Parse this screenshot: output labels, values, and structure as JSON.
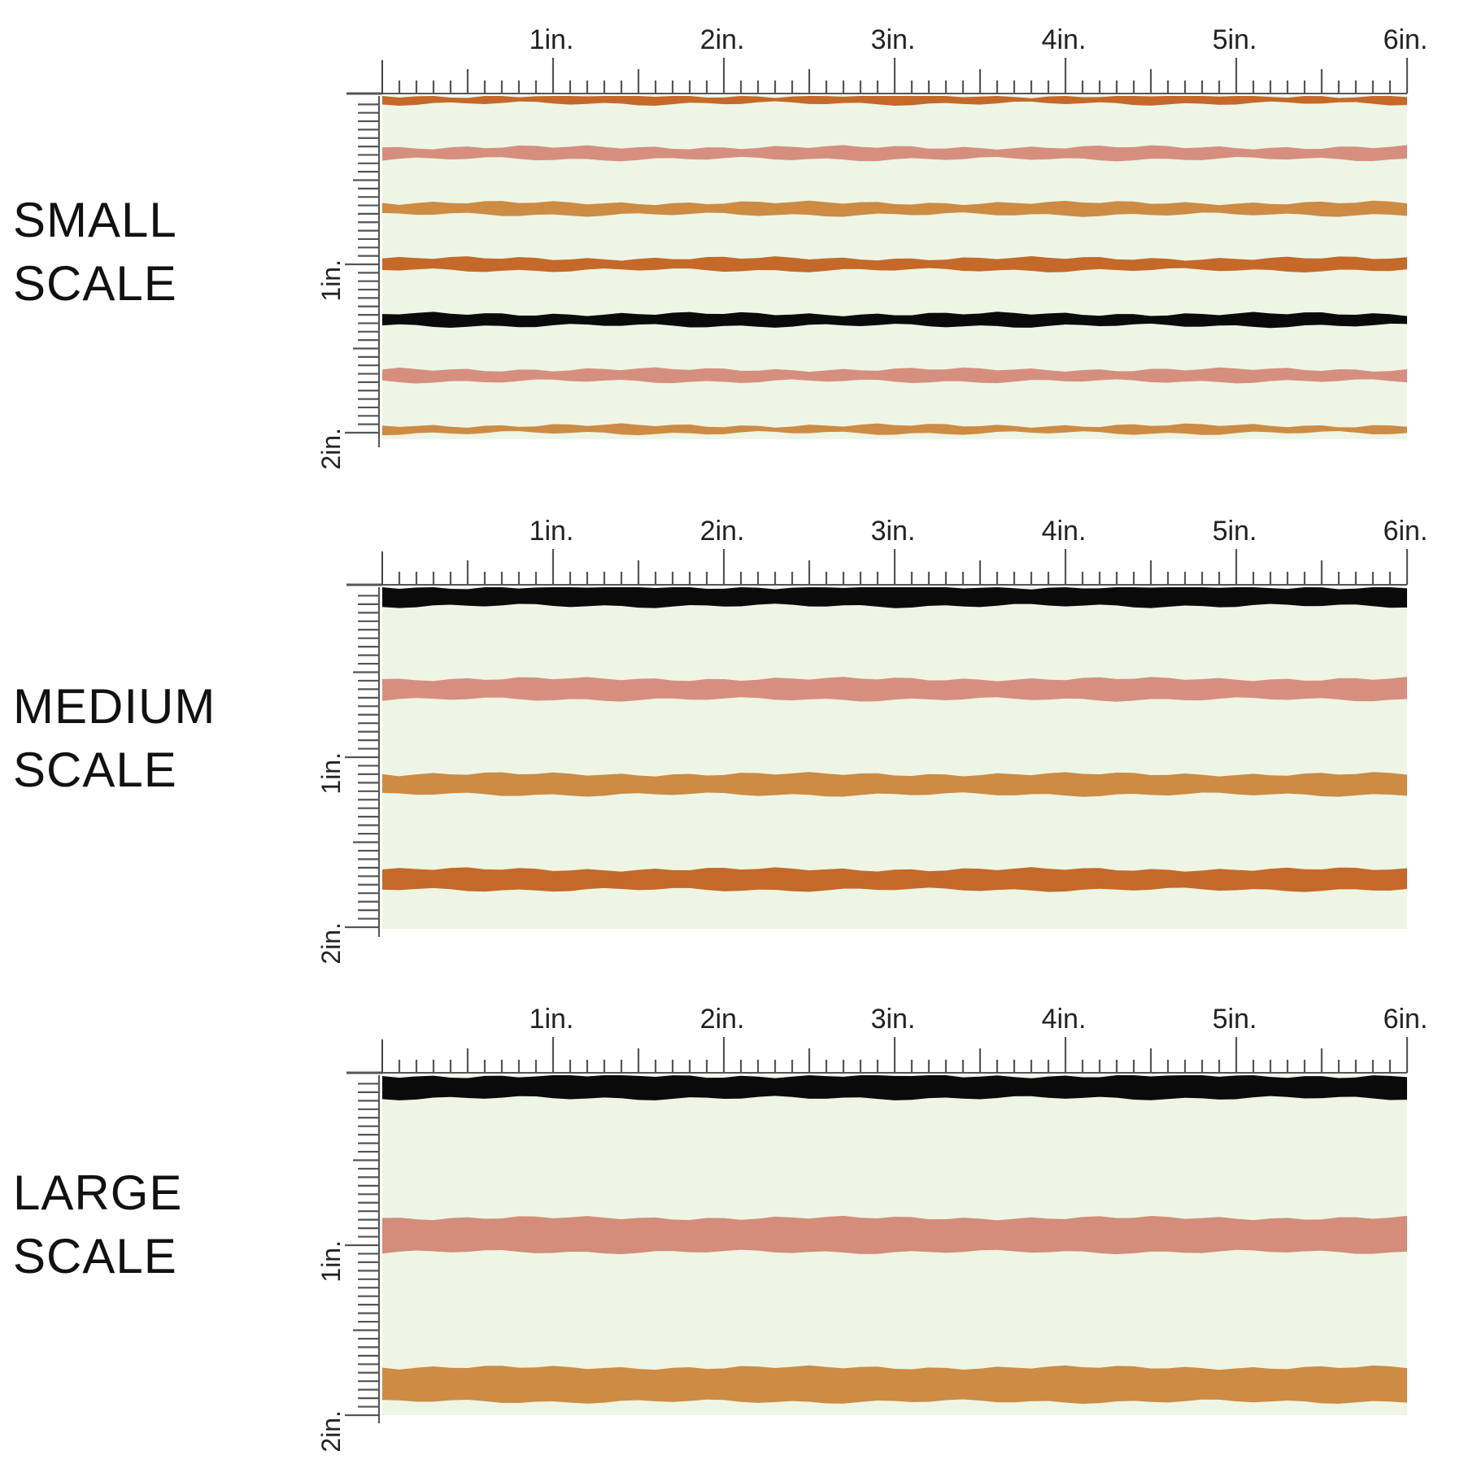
{
  "panels": [
    {
      "id": "small",
      "label_line1": "SMALL",
      "label_line2": "SCALE",
      "ruler": {
        "top_labels": [
          "1in.",
          "2in.",
          "3in.",
          "4in.",
          "5in.",
          "6in."
        ],
        "side_labels": [
          "1in.",
          "2in."
        ]
      },
      "swatch": {
        "background": "#eef5e5",
        "stripes": [
          {
            "color": "#c4692a",
            "center_in": 0.01,
            "thickness_in": 0.07
          },
          {
            "color": "#d68f7e",
            "center_in": 0.34,
            "thickness_in": 0.07
          },
          {
            "color": "#cd8b44",
            "center_in": 0.67,
            "thickness_in": 0.07
          },
          {
            "color": "#c4692a",
            "center_in": 1.0,
            "thickness_in": 0.07
          },
          {
            "color": "#0a0a0a",
            "center_in": 1.33,
            "thickness_in": 0.07
          },
          {
            "color": "#d68f7e",
            "center_in": 1.66,
            "thickness_in": 0.07
          },
          {
            "color": "#cd8b44",
            "center_in": 1.98,
            "thickness_in": 0.045
          }
        ]
      }
    },
    {
      "id": "medium",
      "label_line1": "MEDIUM",
      "label_line2": "SCALE",
      "ruler": {
        "top_labels": [
          "1in.",
          "2in.",
          "3in.",
          "4in.",
          "5in.",
          "6in."
        ],
        "side_labels": [
          "1in.",
          "2in."
        ]
      },
      "swatch": {
        "background": "#eef5e5",
        "stripes": [
          {
            "color": "#0a0a0a",
            "center_in": 0.05,
            "thickness_in": 0.12
          },
          {
            "color": "#d68f7e",
            "center_in": 0.6,
            "thickness_in": 0.12
          },
          {
            "color": "#cd8b44",
            "center_in": 1.16,
            "thickness_in": 0.12
          },
          {
            "color": "#c4692a",
            "center_in": 1.72,
            "thickness_in": 0.12
          }
        ]
      }
    },
    {
      "id": "large",
      "label_line1": "LARGE",
      "label_line2": "SCALE",
      "ruler": {
        "top_labels": [
          "1in.",
          "2in.",
          "3in.",
          "4in.",
          "5in.",
          "6in."
        ],
        "side_labels": [
          "1in.",
          "2in."
        ]
      },
      "swatch": {
        "background": "#eef5e5",
        "stripes": [
          {
            "color": "#0a0a0a",
            "center_in": 0.07,
            "thickness_in": 0.13
          },
          {
            "color": "#d38d7a",
            "center_in": 0.94,
            "thickness_in": 0.2
          },
          {
            "color": "#cd8b44",
            "center_in": 1.82,
            "thickness_in": 0.2
          }
        ]
      }
    }
  ]
}
